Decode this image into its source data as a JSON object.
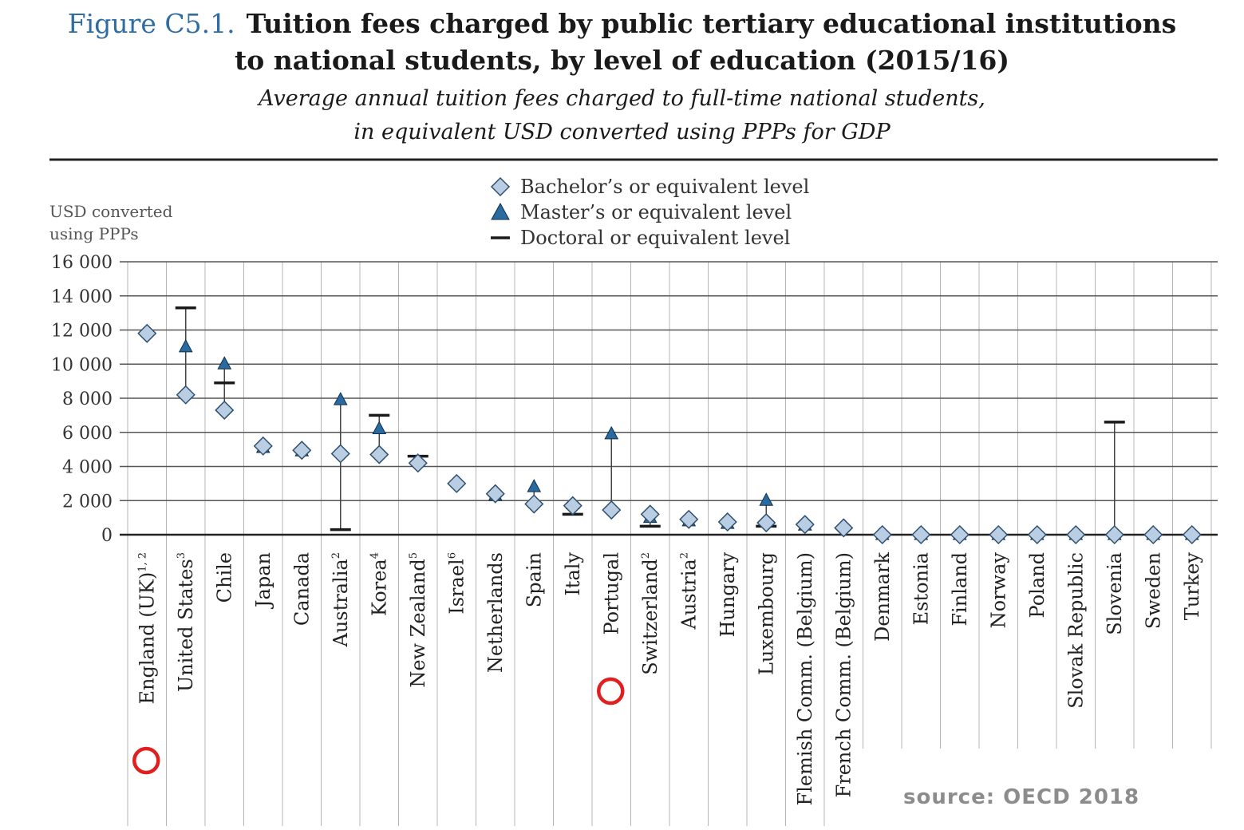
{
  "header": {
    "figure_number": "Figure C5.1.",
    "title_line1": "Tuition fees charged by public tertiary educational institutions",
    "title_line2": "to national students, by level of education (2015/16)",
    "subtitle_line1": "Average annual tuition fees charged to full-time national students,",
    "subtitle_line2": "in equivalent USD converted using PPPs for GDP"
  },
  "source": "source: OECD 2018",
  "colors": {
    "bachelor_fill": "#b9cde3",
    "master_fill": "#2b6a9e",
    "doctoral": "#1a1a1a",
    "grid": "#555555",
    "annotation_circle": "#e02020"
  },
  "chart_data": {
    "type": "scatter",
    "ylabel": "USD converted using PPPs",
    "ylabel_lines": [
      "USD converted",
      "using PPPs"
    ],
    "ylim": [
      0,
      16000
    ],
    "yticks": [
      0,
      2000,
      4000,
      6000,
      8000,
      10000,
      12000,
      14000,
      16000
    ],
    "ytick_labels": [
      "0",
      "2 000",
      "4 000",
      "6 000",
      "8 000",
      "10 000",
      "12 000",
      "14 000",
      "16 000"
    ],
    "grid": true,
    "legend_position": "top-center",
    "categories": [
      {
        "name": "England (UK)",
        "sup": "1, 2"
      },
      {
        "name": "United States",
        "sup": "3"
      },
      {
        "name": "Chile",
        "sup": ""
      },
      {
        "name": "Japan",
        "sup": ""
      },
      {
        "name": "Canada",
        "sup": ""
      },
      {
        "name": "Australia",
        "sup": "2"
      },
      {
        "name": "Korea",
        "sup": "4"
      },
      {
        "name": "New Zealand",
        "sup": "5"
      },
      {
        "name": "Israel",
        "sup": "6"
      },
      {
        "name": "Netherlands",
        "sup": ""
      },
      {
        "name": "Spain",
        "sup": ""
      },
      {
        "name": "Italy",
        "sup": ""
      },
      {
        "name": "Portugal",
        "sup": ""
      },
      {
        "name": "Switzerland",
        "sup": "2"
      },
      {
        "name": "Austria",
        "sup": "2"
      },
      {
        "name": "Hungary",
        "sup": ""
      },
      {
        "name": "Luxembourg",
        "sup": ""
      },
      {
        "name": "Flemish Comm. (Belgium)",
        "sup": ""
      },
      {
        "name": "French Comm. (Belgium)",
        "sup": ""
      },
      {
        "name": "Denmark",
        "sup": ""
      },
      {
        "name": "Estonia",
        "sup": ""
      },
      {
        "name": "Finland",
        "sup": ""
      },
      {
        "name": "Norway",
        "sup": ""
      },
      {
        "name": "Poland",
        "sup": ""
      },
      {
        "name": "Slovak Republic",
        "sup": ""
      },
      {
        "name": "Slovenia",
        "sup": ""
      },
      {
        "name": "Sweden",
        "sup": ""
      },
      {
        "name": "Turkey",
        "sup": ""
      }
    ],
    "series": [
      {
        "name": "Bachelor’s or equivalent level",
        "marker": "diamond",
        "values": [
          11800,
          8200,
          7300,
          5200,
          4950,
          4750,
          4700,
          4200,
          3000,
          2400,
          1800,
          1700,
          1450,
          1200,
          900,
          750,
          700,
          600,
          400,
          0,
          0,
          0,
          0,
          0,
          0,
          0,
          0,
          0
        ]
      },
      {
        "name": "Master’s or equivalent level",
        "marker": "triangle",
        "values": [
          null,
          11000,
          10000,
          5100,
          4900,
          7900,
          6200,
          4300,
          null,
          2300,
          2800,
          1800,
          5900,
          1000,
          800,
          650,
          2000,
          550,
          null,
          0,
          0,
          0,
          0,
          0,
          0,
          0,
          0,
          0
        ]
      },
      {
        "name": "Doctoral or equivalent level",
        "marker": "dash",
        "values": [
          null,
          13300,
          8900,
          null,
          null,
          300,
          7000,
          4600,
          null,
          null,
          null,
          1200,
          null,
          500,
          null,
          null,
          500,
          null,
          null,
          null,
          null,
          null,
          null,
          null,
          null,
          6600,
          null,
          null
        ]
      }
    ],
    "highlighted_categories": [
      "England (UK)",
      "Portugal"
    ]
  }
}
